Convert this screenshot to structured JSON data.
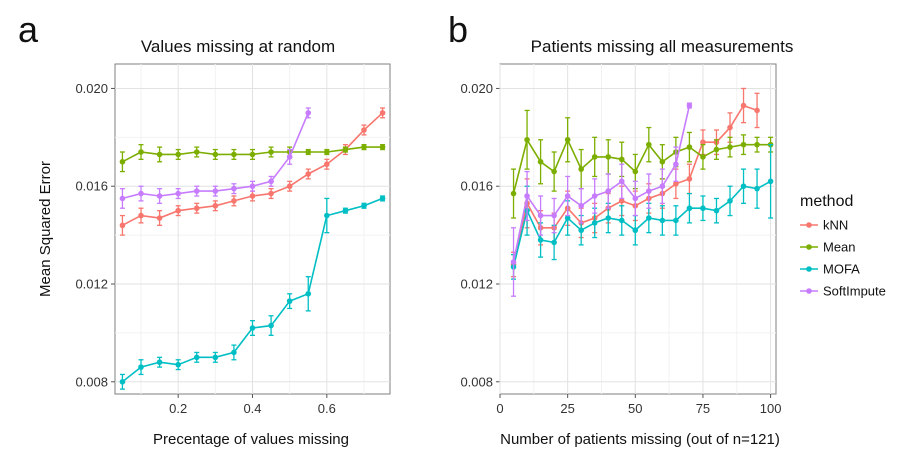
{
  "figure": {
    "shared_ylabel": "Mean Squared Error",
    "legend": {
      "title": "method",
      "placement": "right",
      "entries": [
        {
          "label": "kNN",
          "color": "#F8766D"
        },
        {
          "label": "Mean",
          "color": "#7CAE00"
        },
        {
          "label": "MOFA",
          "color": "#00BFC4"
        },
        {
          "label": "SoftImpute",
          "color": "#C77CFF"
        }
      ]
    }
  },
  "chart_data": [
    {
      "type": "line",
      "panel_label": "a",
      "title": "Values missing at random",
      "xlabel": "Precentage of values missing",
      "ylabel": "Mean Squared Error",
      "xlim": [
        0.03,
        0.77
      ],
      "ylim": [
        0.0075,
        0.021
      ],
      "xticks": [
        0.2,
        0.4,
        0.6
      ],
      "xtick_labels": [
        "0.2",
        "0.4",
        "0.6"
      ],
      "yticks": [
        0.008,
        0.012,
        0.016,
        0.02
      ],
      "ytick_labels": [
        "0.008",
        "0.012",
        "0.016",
        "0.020"
      ],
      "grid": true,
      "series": [
        {
          "name": "kNN",
          "color": "#F8766D",
          "x": [
            0.05,
            0.1,
            0.15,
            0.2,
            0.25,
            0.3,
            0.35,
            0.4,
            0.45,
            0.5,
            0.55,
            0.6,
            0.65,
            0.7,
            0.75
          ],
          "y": [
            0.0144,
            0.0148,
            0.0147,
            0.015,
            0.0151,
            0.0152,
            0.0154,
            0.0156,
            0.0157,
            0.016,
            0.0165,
            0.0169,
            0.0175,
            0.0183,
            0.019
          ],
          "err": [
            0.0004,
            0.0003,
            0.0003,
            0.0002,
            0.0002,
            0.0002,
            0.0002,
            0.0002,
            0.0002,
            0.0002,
            0.0002,
            0.0002,
            0.0002,
            0.0002,
            0.0002
          ]
        },
        {
          "name": "Mean",
          "color": "#7CAE00",
          "x": [
            0.05,
            0.1,
            0.15,
            0.2,
            0.25,
            0.3,
            0.35,
            0.4,
            0.45,
            0.5,
            0.55,
            0.6,
            0.65,
            0.7,
            0.75
          ],
          "y": [
            0.017,
            0.0174,
            0.0173,
            0.0173,
            0.0174,
            0.0173,
            0.0173,
            0.0173,
            0.0174,
            0.0174,
            0.0174,
            0.0174,
            0.0175,
            0.0176,
            0.0176
          ],
          "err": [
            0.0004,
            0.0003,
            0.0003,
            0.0002,
            0.0002,
            0.0002,
            0.0002,
            0.0002,
            0.0002,
            0.0002,
            0.0001,
            0.0001,
            0.0001,
            0.0001,
            0.0001
          ]
        },
        {
          "name": "MOFA",
          "color": "#00BFC4",
          "x": [
            0.05,
            0.1,
            0.15,
            0.2,
            0.25,
            0.3,
            0.35,
            0.4,
            0.45,
            0.5,
            0.55,
            0.6,
            0.65,
            0.7,
            0.75
          ],
          "y": [
            0.008,
            0.0086,
            0.0088,
            0.0087,
            0.009,
            0.009,
            0.0092,
            0.0102,
            0.0103,
            0.0113,
            0.0116,
            0.0148,
            0.015,
            0.0152,
            0.0155
          ],
          "err": [
            0.0003,
            0.0003,
            0.0002,
            0.0002,
            0.0002,
            0.0002,
            0.0003,
            0.0003,
            0.0004,
            0.0003,
            0.0007,
            0.0007,
            0.0001,
            0.0001,
            0.0001
          ]
        },
        {
          "name": "SoftImpute",
          "color": "#C77CFF",
          "x": [
            0.05,
            0.1,
            0.15,
            0.2,
            0.25,
            0.3,
            0.35,
            0.4,
            0.45,
            0.5,
            0.55
          ],
          "y": [
            0.0155,
            0.0157,
            0.0156,
            0.0157,
            0.0158,
            0.0158,
            0.0159,
            0.016,
            0.0162,
            0.0172,
            0.019
          ],
          "err": [
            0.0004,
            0.0003,
            0.0003,
            0.0002,
            0.0002,
            0.0002,
            0.0002,
            0.0002,
            0.0002,
            0.0003,
            0.0002
          ]
        }
      ]
    },
    {
      "type": "line",
      "panel_label": "b",
      "title": "Patients missing all measurements",
      "xlabel": "Number of patients missing (out of n=121)",
      "ylabel": "Mean Squared Error",
      "xlim": [
        0,
        102
      ],
      "ylim": [
        0.0075,
        0.021
      ],
      "xticks": [
        0,
        25,
        50,
        75,
        100
      ],
      "xtick_labels": [
        "0",
        "25",
        "50",
        "75",
        "100"
      ],
      "yticks": [
        0.008,
        0.012,
        0.016,
        0.02
      ],
      "ytick_labels": [
        "0.008",
        "0.012",
        "0.016",
        "0.020"
      ],
      "grid": true,
      "series": [
        {
          "name": "kNN",
          "color": "#F8766D",
          "x": [
            5,
            10,
            15,
            20,
            25,
            30,
            35,
            40,
            45,
            50,
            55,
            60,
            65,
            70,
            75,
            80,
            85,
            90,
            95
          ],
          "y": [
            0.0128,
            0.0153,
            0.0143,
            0.0143,
            0.0151,
            0.0145,
            0.0147,
            0.0151,
            0.0154,
            0.0152,
            0.0155,
            0.0157,
            0.0161,
            0.0163,
            0.0178,
            0.0178,
            0.0184,
            0.0193,
            0.0191
          ],
          "err": [
            0.0005,
            0.001,
            0.0007,
            0.0006,
            0.0007,
            0.0006,
            0.0006,
            0.0006,
            0.0006,
            0.0006,
            0.0006,
            0.0006,
            0.0006,
            0.0006,
            0.0005,
            0.0005,
            0.0006,
            0.0007,
            0.0007
          ]
        },
        {
          "name": "Mean",
          "color": "#7CAE00",
          "x": [
            5,
            10,
            15,
            20,
            25,
            30,
            35,
            40,
            45,
            50,
            55,
            60,
            65,
            70,
            75,
            80,
            85,
            90,
            95,
            100
          ],
          "y": [
            0.0157,
            0.0179,
            0.017,
            0.0166,
            0.0179,
            0.0167,
            0.0172,
            0.0172,
            0.0171,
            0.0166,
            0.0177,
            0.017,
            0.0174,
            0.0176,
            0.0172,
            0.0175,
            0.0176,
            0.0177,
            0.0177,
            0.0177
          ],
          "err": [
            0.001,
            0.0012,
            0.0009,
            0.0008,
            0.0009,
            0.0008,
            0.0008,
            0.0007,
            0.0007,
            0.0007,
            0.0007,
            0.0007,
            0.0006,
            0.0006,
            0.0005,
            0.0004,
            0.0004,
            0.0004,
            0.0003,
            0.0003
          ]
        },
        {
          "name": "MOFA",
          "color": "#00BFC4",
          "x": [
            5,
            10,
            15,
            20,
            25,
            30,
            35,
            40,
            45,
            50,
            55,
            60,
            65,
            70,
            75,
            80,
            85,
            90,
            95,
            100
          ],
          "y": [
            0.0127,
            0.015,
            0.0138,
            0.0137,
            0.0147,
            0.0142,
            0.0145,
            0.0147,
            0.0146,
            0.0142,
            0.0147,
            0.0146,
            0.0146,
            0.0151,
            0.0151,
            0.015,
            0.0154,
            0.016,
            0.0159,
            0.0162
          ],
          "err": [
            0.0005,
            0.001,
            0.0007,
            0.0007,
            0.0007,
            0.0006,
            0.0006,
            0.0006,
            0.0006,
            0.0006,
            0.0006,
            0.0006,
            0.0006,
            0.0006,
            0.0005,
            0.0005,
            0.0006,
            0.0007,
            0.0008,
            0.0015
          ]
        },
        {
          "name": "SoftImpute",
          "color": "#C77CFF",
          "x": [
            5,
            10,
            15,
            20,
            25,
            30,
            35,
            40,
            45,
            50,
            55,
            60,
            65,
            70
          ],
          "y": [
            0.0129,
            0.0156,
            0.0148,
            0.0148,
            0.0156,
            0.0152,
            0.0156,
            0.0158,
            0.0162,
            0.0155,
            0.0158,
            0.016,
            0.0169,
            0.0193
          ],
          "err": [
            0.0014,
            0.001,
            0.0008,
            0.0007,
            0.0008,
            0.0007,
            0.0007,
            0.0007,
            0.0007,
            0.0007,
            0.0007,
            0.0007,
            0.0007,
            0.0001
          ]
        }
      ]
    }
  ]
}
